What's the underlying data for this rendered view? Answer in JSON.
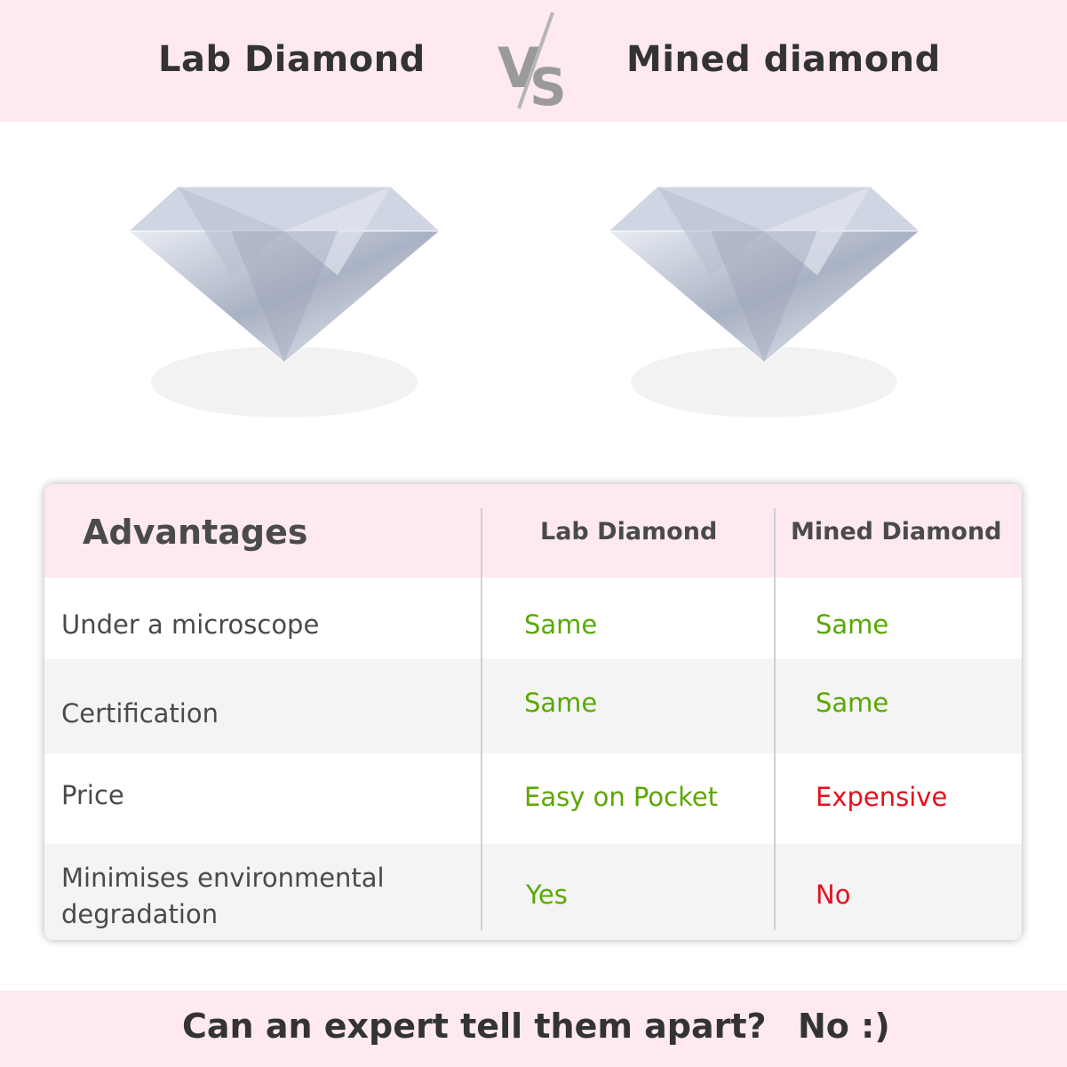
{
  "header": {
    "left_title": "Lab Diamond",
    "vs_label": "VS",
    "right_title": "Mined diamond"
  },
  "images": [
    {
      "icon": "diamond-icon"
    },
    {
      "icon": "diamond-icon"
    }
  ],
  "table": {
    "columns": [
      "Advantages",
      "Lab Diamond",
      "Mined Diamond"
    ],
    "rows": [
      {
        "label": "Under a microscope",
        "lab": "Same",
        "mined": "Same"
      },
      {
        "label": "Certification",
        "lab": "Same",
        "mined": "Same"
      },
      {
        "label": "Price",
        "lab": "Easy on Pocket",
        "mined": "Expensive"
      },
      {
        "label": "Minimises environmental degradation",
        "lab": "Yes",
        "mined": "No"
      }
    ]
  },
  "footer": {
    "question": "Can an expert tell them apart?",
    "answer": "No :)"
  },
  "colors": {
    "band": "#fde9ee",
    "positive": "#5aa800",
    "negative": "#e5101e"
  }
}
